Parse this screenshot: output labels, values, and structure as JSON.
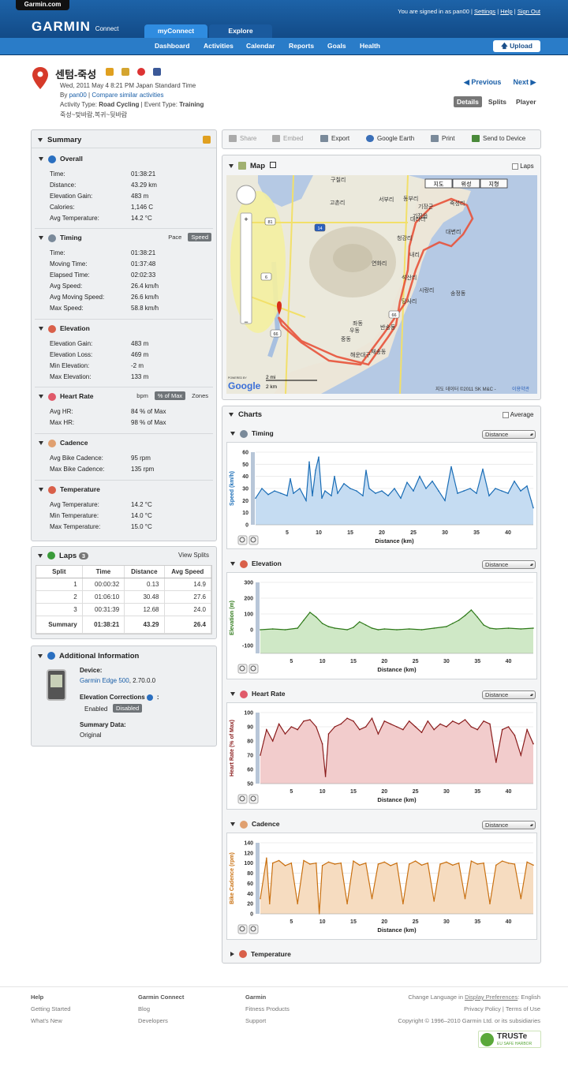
{
  "header": {
    "site_tab": "Garmin.com",
    "logo": "GARMIN",
    "logo_sub": "Connect",
    "signed_in": "You are signed in as pan00",
    "settings": "Settings",
    "help": "Help",
    "sign_out": "Sign Out",
    "tabs": [
      "myConnect",
      "Explore"
    ],
    "nav": [
      "Dashboard",
      "Activities",
      "Calendar",
      "Reports",
      "Goals",
      "Health"
    ],
    "upload": "Upload"
  },
  "activity": {
    "title": "센텀-죽성",
    "date": "Wed, 2011 May 4 8:21 PM Japan Standard Time",
    "by_label": "By",
    "user": "pan00",
    "compare": "Compare similar activities",
    "activity_type_label": "Activity Type:",
    "activity_type": "Road Cycling",
    "event_type_label": "Event Type:",
    "event_type": "Training",
    "description": "죽성~맞바람,복귀~뒷바람",
    "prev": "Previous",
    "next": "Next",
    "views": [
      "Details",
      "Splits",
      "Player"
    ]
  },
  "summary": {
    "title": "Summary",
    "overall": {
      "title": "Overall",
      "rows": [
        [
          "Time:",
          "01:38:21"
        ],
        [
          "Distance:",
          "43.29 km"
        ],
        [
          "Elevation Gain:",
          "483 m"
        ],
        [
          "Calories:",
          "1,146 C"
        ],
        [
          "Avg Temperature:",
          "14.2 °C"
        ]
      ]
    },
    "timing": {
      "title": "Timing",
      "toggles": [
        "Pace",
        "Speed"
      ],
      "rows": [
        [
          "Time:",
          "01:38:21"
        ],
        [
          "Moving Time:",
          "01:37:48"
        ],
        [
          "Elapsed Time:",
          "02:02:33"
        ],
        [
          "Avg Speed:",
          "26.4 km/h"
        ],
        [
          "Avg Moving Speed:",
          "26.6 km/h"
        ],
        [
          "Max Speed:",
          "58.8 km/h"
        ]
      ]
    },
    "elevation": {
      "title": "Elevation",
      "rows": [
        [
          "Elevation Gain:",
          "483 m"
        ],
        [
          "Elevation Loss:",
          "469 m"
        ],
        [
          "Min Elevation:",
          "-2 m"
        ],
        [
          "Max Elevation:",
          "133 m"
        ]
      ]
    },
    "heart_rate": {
      "title": "Heart Rate",
      "toggles": [
        "bpm",
        "% of Max",
        "Zones"
      ],
      "rows": [
        [
          "Avg HR:",
          "84 % of Max"
        ],
        [
          "Max HR:",
          "98 % of Max"
        ]
      ]
    },
    "cadence": {
      "title": "Cadence",
      "rows": [
        [
          "Avg Bike Cadence:",
          "95 rpm"
        ],
        [
          "Max Bike Cadence:",
          "135 rpm"
        ]
      ]
    },
    "temperature": {
      "title": "Temperature",
      "rows": [
        [
          "Avg Temperature:",
          "14.2 °C"
        ],
        [
          "Min Temperature:",
          "14.0 °C"
        ],
        [
          "Max Temperature:",
          "15.0 °C"
        ]
      ]
    }
  },
  "laps": {
    "title": "Laps",
    "count": "3",
    "view_splits": "View Splits",
    "columns": [
      "Split",
      "Time",
      "Distance",
      "Avg Speed"
    ],
    "rows": [
      [
        "1",
        "00:00:32",
        "0.13",
        "14.9"
      ],
      [
        "2",
        "01:06:10",
        "30.48",
        "27.6"
      ],
      [
        "3",
        "00:31:39",
        "12.68",
        "24.0"
      ],
      [
        "Summary",
        "01:38:21",
        "43.29",
        "26.4"
      ]
    ]
  },
  "additional": {
    "title": "Additional Information",
    "device_label": "Device:",
    "device": "Garmin Edge 500",
    "device_ver": ", 2.70.0.0",
    "elev_corr_label": "Elevation Corrections",
    "options": [
      "Enabled",
      "Disabled"
    ],
    "summary_data_label": "Summary Data:",
    "summary_data": "Original"
  },
  "toolbar": [
    "Share",
    "Embed",
    "Export",
    "Google Earth",
    "Print",
    "Send to Device"
  ],
  "map": {
    "title": "Map",
    "laps_label": "Laps",
    "map_types": [
      "지도",
      "위성",
      "지형"
    ],
    "places": [
      "구칠리",
      "고촌리",
      "서부리",
      "동부리",
      "기장군",
      "기장읍",
      "죽성리",
      "대변리",
      "대라리",
      "청강리",
      "연화리",
      "내리",
      "석산리",
      "시랑리",
      "당사리",
      "송정동",
      "해운대구",
      "반송동",
      "재송동",
      "우동",
      "좌동",
      "중동"
    ],
    "roads": [
      "81",
      "14",
      "6",
      "66",
      "66"
    ],
    "scale_mi": "2 mi",
    "scale_km": "2 km",
    "copyright": "지도 데이터 ©2011 SK M&C -",
    "terms": "이용약관",
    "powered": "POWERED BY",
    "google": "Google"
  },
  "charts_section": {
    "title": "Charts",
    "average_label": "Average",
    "x_select": "Distance",
    "xlabel": "Distance (km)",
    "collapsed": "Temperature"
  },
  "chart_data": [
    {
      "type": "line",
      "title": "Timing",
      "ylabel": "Speed (km/h)",
      "ylim": [
        0,
        60
      ],
      "yticks": [
        0,
        10,
        20,
        30,
        40,
        50,
        60
      ],
      "xlim": [
        0,
        44
      ],
      "xticks": [
        5,
        10,
        15,
        20,
        25,
        30,
        35,
        40
      ],
      "color": "#1a6db6",
      "fill": "#c5dcf2",
      "x": [
        0,
        1,
        2,
        3,
        4,
        5,
        5.5,
        6,
        7,
        8,
        8.5,
        9,
        9.5,
        10,
        10.5,
        11,
        12,
        12.5,
        13,
        14,
        15,
        16,
        17,
        17.5,
        18,
        19,
        20,
        21,
        22,
        23,
        24,
        25,
        26,
        27,
        28,
        29,
        30,
        31,
        32,
        33,
        34,
        35,
        36,
        37,
        38,
        39,
        40,
        41,
        42,
        43,
        44
      ],
      "y": [
        22,
        30,
        25,
        28,
        26,
        24,
        38,
        26,
        30,
        20,
        52,
        24,
        45,
        56,
        22,
        28,
        24,
        40,
        26,
        34,
        30,
        28,
        24,
        45,
        30,
        26,
        28,
        24,
        30,
        22,
        35,
        28,
        40,
        30,
        36,
        28,
        20,
        48,
        26,
        28,
        30,
        26,
        46,
        24,
        30,
        28,
        26,
        36,
        28,
        32,
        14
      ]
    },
    {
      "type": "line",
      "title": "Elevation",
      "ylabel": "Elevation (m)",
      "ylim": [
        -150,
        300
      ],
      "yticks": [
        -100,
        0,
        100,
        200,
        300
      ],
      "xlim": [
        0,
        44
      ],
      "xticks": [
        5,
        10,
        15,
        20,
        25,
        30,
        35,
        40
      ],
      "color": "#2f7a1a",
      "fill": "#cfe8c6",
      "x": [
        0,
        2,
        4,
        6,
        7,
        8,
        9,
        10,
        11,
        12,
        14,
        15,
        16,
        17,
        18,
        19,
        20,
        22,
        24,
        26,
        28,
        30,
        31,
        32,
        33,
        34,
        35,
        36,
        37,
        38,
        40,
        42,
        44
      ],
      "y": [
        0,
        5,
        0,
        10,
        60,
        110,
        80,
        40,
        20,
        10,
        0,
        15,
        50,
        30,
        10,
        0,
        5,
        0,
        5,
        0,
        10,
        20,
        40,
        60,
        90,
        125,
        80,
        30,
        10,
        5,
        10,
        5,
        10
      ]
    },
    {
      "type": "line",
      "title": "Heart Rate",
      "ylabel": "Heart Rate (% of Max)",
      "ylim": [
        50,
        100
      ],
      "yticks": [
        50,
        60,
        70,
        80,
        90,
        100
      ],
      "xlim": [
        0,
        44
      ],
      "xticks": [
        5,
        10,
        15,
        20,
        25,
        30,
        35,
        40
      ],
      "color": "#8a1c1c",
      "fill": "#f2cccc",
      "x": [
        0,
        1,
        2,
        3,
        4,
        5,
        6,
        7,
        8,
        9,
        10,
        10.5,
        11,
        12,
        13,
        14,
        15,
        16,
        17,
        18,
        19,
        20,
        21,
        22,
        23,
        24,
        25,
        26,
        27,
        28,
        29,
        30,
        31,
        32,
        33,
        34,
        35,
        36,
        37,
        38,
        39,
        40,
        41,
        42,
        43,
        44
      ],
      "y": [
        70,
        88,
        80,
        92,
        85,
        90,
        88,
        94,
        95,
        90,
        78,
        55,
        85,
        90,
        92,
        96,
        94,
        88,
        90,
        96,
        85,
        94,
        92,
        90,
        88,
        94,
        90,
        86,
        94,
        88,
        92,
        90,
        94,
        92,
        95,
        90,
        88,
        94,
        92,
        65,
        88,
        90,
        84,
        70,
        88,
        78
      ]
    },
    {
      "type": "line",
      "title": "Cadence",
      "ylabel": "Bike Cadence (rpm)",
      "ylim": [
        0,
        140
      ],
      "yticks": [
        0,
        20,
        40,
        60,
        80,
        100,
        120,
        140
      ],
      "xlim": [
        0,
        44
      ],
      "xticks": [
        5,
        10,
        15,
        20,
        25,
        30,
        35,
        40
      ],
      "color": "#c97010",
      "fill": "#f6dcc0",
      "x": [
        0,
        1,
        1.5,
        2,
        3,
        4,
        5,
        6,
        7,
        8,
        9,
        9.5,
        10,
        11,
        12,
        13,
        14,
        15,
        16,
        17,
        18,
        19,
        20,
        21,
        22,
        23,
        24,
        25,
        26,
        27,
        28,
        29,
        30,
        31,
        32,
        33,
        34,
        35,
        36,
        37,
        38,
        39,
        40,
        41,
        42,
        43,
        44
      ],
      "y": [
        30,
        110,
        20,
        100,
        105,
        95,
        100,
        20,
        105,
        98,
        100,
        0,
        95,
        102,
        98,
        100,
        20,
        104,
        96,
        100,
        30,
        98,
        102,
        95,
        100,
        20,
        98,
        104,
        96,
        100,
        25,
        98,
        102,
        96,
        100,
        30,
        104,
        98,
        100,
        20,
        96,
        104,
        100,
        98,
        30,
        102,
        96
      ]
    }
  ],
  "footer": {
    "col1_title": "Help",
    "col1": [
      "Getting Started",
      "What's New"
    ],
    "col2_title": "Garmin Connect",
    "col2": [
      "Blog",
      "Developers"
    ],
    "col3_title": "Garmin",
    "col3": [
      "Fitness Products",
      "Support"
    ],
    "lang_prefix": "Change Language in",
    "lang_link": "Display Preferences",
    "lang_suffix": ": English",
    "privacy": "Privacy Policy | Terms of Use",
    "copyright": "Copyright © 1996–2010 Garmin Ltd. or its subsidiaries",
    "truste": "TRUSTe",
    "truste_sub": "EU SAFE HARBOR"
  }
}
